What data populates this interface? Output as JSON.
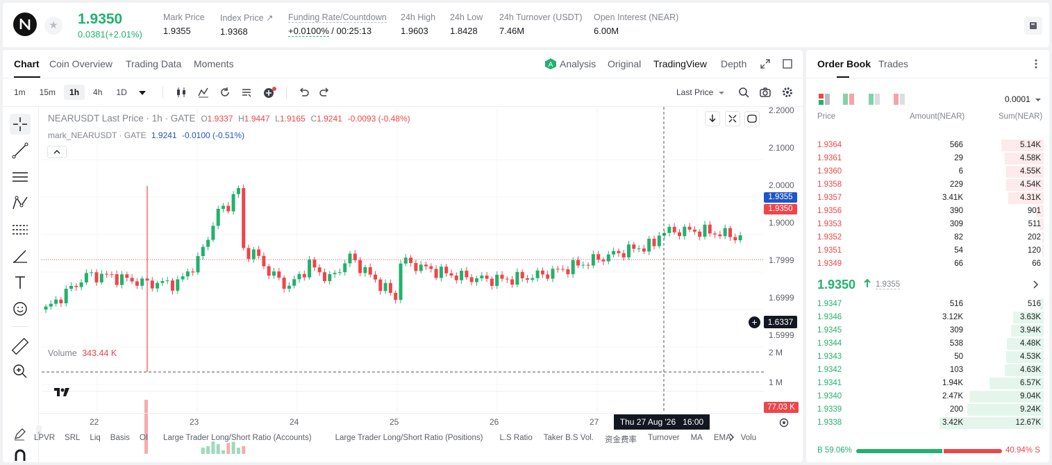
{
  "header": {
    "last_price": "1.9350",
    "change": "0.0381(+2.01%)",
    "stats": [
      {
        "label": "Mark Price",
        "value": "1.9355"
      },
      {
        "label": "Index Price ↗",
        "value": "1.9368"
      },
      {
        "label": "Funding Rate/Countdown",
        "value": "+0.0100%",
        "value2": "/ 00:25:13"
      },
      {
        "label": "24h High",
        "value": "1.9603"
      },
      {
        "label": "24h Low",
        "value": "1.8428"
      },
      {
        "label": "24h Turnover (USDT)",
        "value": "7.46M"
      },
      {
        "label": "Open Interest (NEAR)",
        "value": "6.00M"
      }
    ]
  },
  "chart_tabs": [
    "Chart",
    "Coin Overview",
    "Trading Data",
    "Moments"
  ],
  "view_tabs": {
    "analysis": "Analysis",
    "original": "Original",
    "tradingview": "TradingView",
    "depth": "Depth"
  },
  "timeframes": [
    "1m",
    "15m",
    "1h",
    "4h",
    "1D"
  ],
  "price_type": "Last Price",
  "legend": {
    "symbol": "NEARUSDT Last Price · 1h · GATE",
    "o_label": "O",
    "o": "1.9337",
    "h_label": "H",
    "h": "1.9447",
    "l_label": "L",
    "l": "1.9165",
    "c_label": "C",
    "c": "1.9241",
    "chg": "-0.0093 (-0.48%)",
    "mark_name": "mark_NEARUSDT · GATE",
    "mark_val": "1.9241",
    "mark_chg": "-0.0100 (-0.51%)"
  },
  "volume_legend": {
    "label": "Volume",
    "value": "343.44 K"
  },
  "price_axis": [
    "2.2000",
    "2.1000",
    "2.0000",
    "1.9000",
    "1.7999",
    "1.6999",
    "1.5999"
  ],
  "price_tags": {
    "mark": "1.9355",
    "last": "1.9350",
    "cross": "1.6337"
  },
  "vol_axis": [
    "2 M",
    "1 M"
  ],
  "vol_tag": "77.03 K",
  "time_axis": [
    "22",
    "23",
    "24",
    "25",
    "26",
    "27"
  ],
  "crosshair_time": "Thu 27 Aug '26   16:00",
  "bottom_indicators": [
    "LPVR",
    "SRL",
    "Liq",
    "Basis",
    "OI",
    "Large Trader Long/Short Ratio (Accounts)",
    "Large Trader Long/Short Ratio (Positions)",
    "L.S Ratio",
    "Taker B.S Vol.",
    "资金费率",
    "Turnover",
    "MA",
    "EMA",
    "Volu"
  ],
  "order_book": {
    "tabs": [
      "Order Book",
      "Trades"
    ],
    "precision": "0.0001",
    "columns": [
      "Price",
      "Amount(NEAR)",
      "Sum(NEAR)"
    ],
    "asks": [
      {
        "price": "1.9364",
        "amount": "566",
        "sum": "5.14K",
        "depth": 0.41
      },
      {
        "price": "1.9361",
        "amount": "29",
        "sum": "4.58K",
        "depth": 0.37
      },
      {
        "price": "1.9360",
        "amount": "6",
        "sum": "4.55K",
        "depth": 0.36
      },
      {
        "price": "1.9358",
        "amount": "229",
        "sum": "4.54K",
        "depth": 0.36
      },
      {
        "price": "1.9357",
        "amount": "3.41K",
        "sum": "4.31K",
        "depth": 0.34
      },
      {
        "price": "1.9356",
        "amount": "390",
        "sum": "901",
        "depth": 0.07
      },
      {
        "price": "1.9353",
        "amount": "309",
        "sum": "511",
        "depth": 0.04
      },
      {
        "price": "1.9352",
        "amount": "82",
        "sum": "202",
        "depth": 0.016
      },
      {
        "price": "1.9351",
        "amount": "54",
        "sum": "120",
        "depth": 0.01
      },
      {
        "price": "1.9349",
        "amount": "66",
        "sum": "66",
        "depth": 0.005
      }
    ],
    "mid_price": "1.9350",
    "mid_mark": "1.9355",
    "bids": [
      {
        "price": "1.9347",
        "amount": "516",
        "sum": "516",
        "depth": 0.04
      },
      {
        "price": "1.9346",
        "amount": "3.12K",
        "sum": "3.63K",
        "depth": 0.29
      },
      {
        "price": "1.9345",
        "amount": "309",
        "sum": "3.94K",
        "depth": 0.31
      },
      {
        "price": "1.9344",
        "amount": "538",
        "sum": "4.48K",
        "depth": 0.35
      },
      {
        "price": "1.9343",
        "amount": "50",
        "sum": "4.53K",
        "depth": 0.36
      },
      {
        "price": "1.9342",
        "amount": "103",
        "sum": "4.63K",
        "depth": 0.37
      },
      {
        "price": "1.9341",
        "amount": "1.94K",
        "sum": "6.57K",
        "depth": 0.52
      },
      {
        "price": "1.9340",
        "amount": "2.47K",
        "sum": "9.04K",
        "depth": 0.71
      },
      {
        "price": "1.9339",
        "amount": "200",
        "sum": "9.24K",
        "depth": 0.73
      },
      {
        "price": "1.9338",
        "amount": "3.42K",
        "sum": "12.67K",
        "depth": 1.0
      }
    ],
    "buy_ratio": "59.06%",
    "sell_ratio": "40.94%",
    "buy_label": "B",
    "sell_label": "S"
  },
  "colors": {
    "up": "#20b26c",
    "down": "#ef454a",
    "mark": "#1e55c9"
  }
}
